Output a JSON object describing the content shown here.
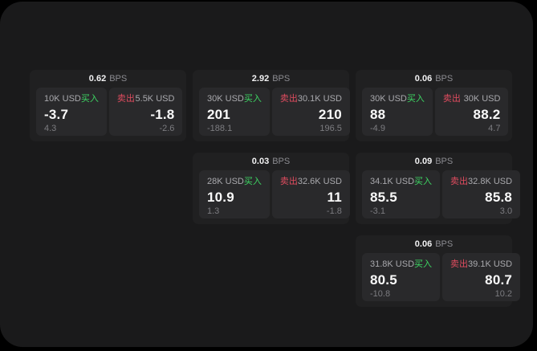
{
  "labels": {
    "bps_unit": "BPS",
    "buy": "买入",
    "sell": "卖出"
  },
  "colors": {
    "panel": "#1a1a1b",
    "card": "#202021",
    "subcard": "#29292b",
    "buy": "#3dd663",
    "sell": "#e14c5f"
  },
  "cards": [
    {
      "bps": "0.62",
      "buy": {
        "amount": "10K USD",
        "price": "-3.7",
        "sub": "4.3"
      },
      "sell": {
        "amount": "5.5K USD",
        "price": "-1.8",
        "sub": "-2.6"
      }
    },
    {
      "bps": "2.92",
      "buy": {
        "amount": "30K USD",
        "price": "201",
        "sub": "-188.1"
      },
      "sell": {
        "amount": "30.1K USD",
        "price": "210",
        "sub": "196.5"
      }
    },
    {
      "bps": "0.06",
      "buy": {
        "amount": "30K USD",
        "price": "88",
        "sub": "-4.9"
      },
      "sell": {
        "amount": "30K USD",
        "price": "88.2",
        "sub": "4.7"
      }
    },
    {
      "bps": "0.03",
      "buy": {
        "amount": "28K USD",
        "price": "10.9",
        "sub": "1.3"
      },
      "sell": {
        "amount": "32.6K USD",
        "price": "11",
        "sub": "-1.8"
      }
    },
    {
      "bps": "0.09",
      "buy": {
        "amount": "34.1K USD",
        "price": "85.5",
        "sub": "-3.1"
      },
      "sell": {
        "amount": "32.8K USD",
        "price": "85.8",
        "sub": "3.0"
      }
    },
    {
      "bps": "0.06",
      "buy": {
        "amount": "31.8K USD",
        "price": "80.5",
        "sub": "-10.8"
      },
      "sell": {
        "amount": "39.1K USD",
        "price": "80.7",
        "sub": "10.2"
      }
    }
  ]
}
